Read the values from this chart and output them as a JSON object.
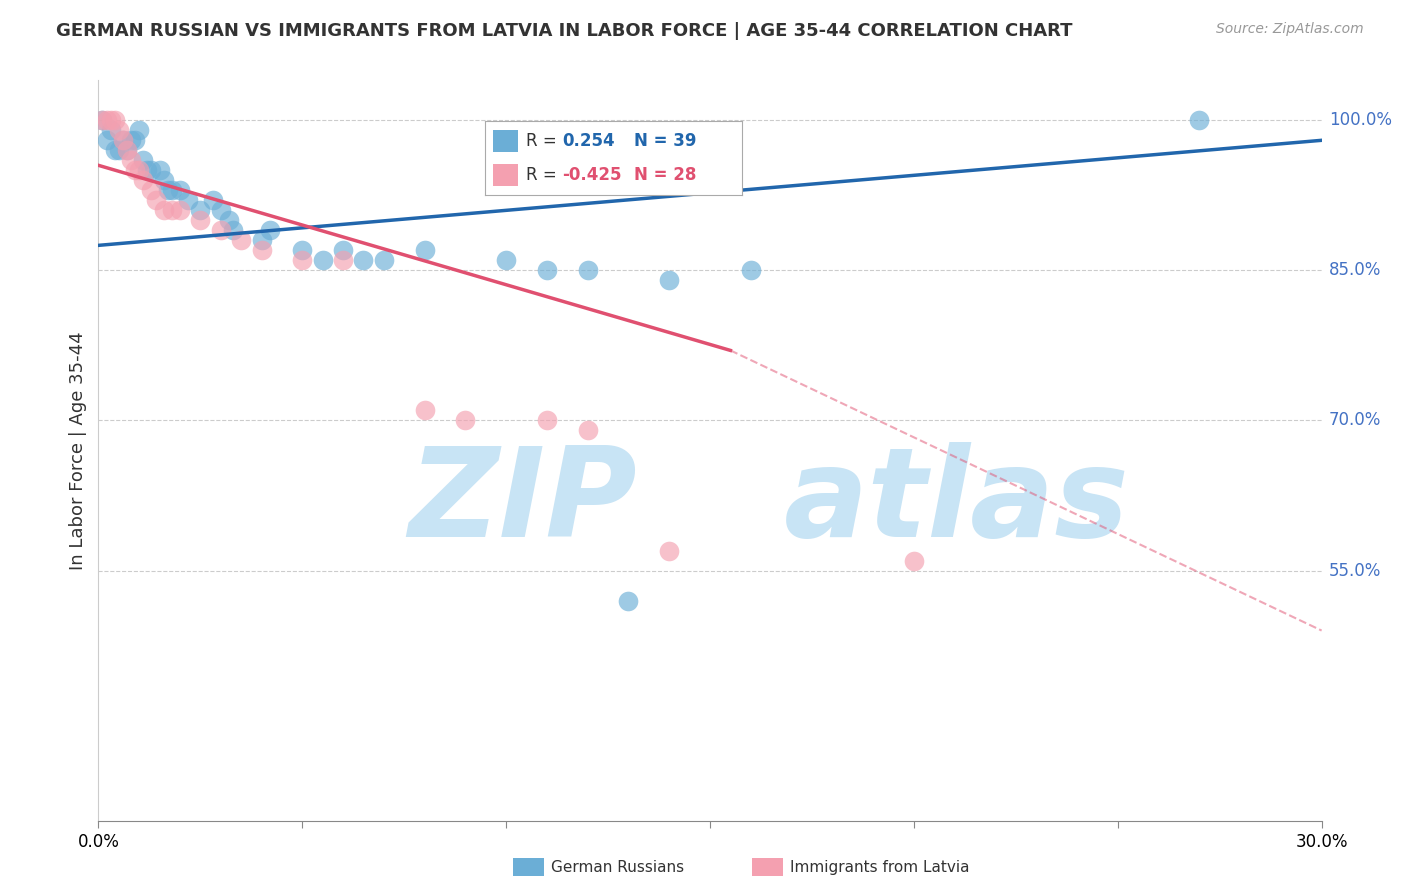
{
  "title": "GERMAN RUSSIAN VS IMMIGRANTS FROM LATVIA IN LABOR FORCE | AGE 35-44 CORRELATION CHART",
  "source": "Source: ZipAtlas.com",
  "ylabel": "In Labor Force | Age 35-44",
  "xlim": [
    0.0,
    0.3
  ],
  "ylim": [
    0.3,
    1.04
  ],
  "xticks": [
    0.0,
    0.05,
    0.1,
    0.15,
    0.2,
    0.25,
    0.3
  ],
  "yticks_right": [
    1.0,
    0.85,
    0.7,
    0.55
  ],
  "ytick_labels_right": [
    "100.0%",
    "85.0%",
    "70.0%",
    "55.0%"
  ],
  "blue_color": "#6baed6",
  "pink_color": "#f4a0b0",
  "blue_line_color": "#2166ac",
  "pink_line_color": "#e05070",
  "blue_scatter": [
    [
      0.001,
      1.0
    ],
    [
      0.002,
      0.98
    ],
    [
      0.003,
      0.99
    ],
    [
      0.004,
      0.97
    ],
    [
      0.005,
      0.97
    ],
    [
      0.006,
      0.98
    ],
    [
      0.007,
      0.97
    ],
    [
      0.008,
      0.98
    ],
    [
      0.009,
      0.98
    ],
    [
      0.01,
      0.99
    ],
    [
      0.011,
      0.96
    ],
    [
      0.012,
      0.95
    ],
    [
      0.013,
      0.95
    ],
    [
      0.015,
      0.95
    ],
    [
      0.016,
      0.94
    ],
    [
      0.017,
      0.93
    ],
    [
      0.018,
      0.93
    ],
    [
      0.02,
      0.93
    ],
    [
      0.022,
      0.92
    ],
    [
      0.025,
      0.91
    ],
    [
      0.028,
      0.92
    ],
    [
      0.03,
      0.91
    ],
    [
      0.032,
      0.9
    ],
    [
      0.033,
      0.89
    ],
    [
      0.04,
      0.88
    ],
    [
      0.042,
      0.89
    ],
    [
      0.05,
      0.87
    ],
    [
      0.055,
      0.86
    ],
    [
      0.06,
      0.87
    ],
    [
      0.065,
      0.86
    ],
    [
      0.07,
      0.86
    ],
    [
      0.08,
      0.87
    ],
    [
      0.1,
      0.86
    ],
    [
      0.11,
      0.85
    ],
    [
      0.12,
      0.85
    ],
    [
      0.14,
      0.84
    ],
    [
      0.16,
      0.85
    ],
    [
      0.13,
      0.52
    ],
    [
      0.27,
      1.0
    ]
  ],
  "pink_scatter": [
    [
      0.001,
      1.0
    ],
    [
      0.002,
      1.0
    ],
    [
      0.003,
      1.0
    ],
    [
      0.004,
      1.0
    ],
    [
      0.005,
      0.99
    ],
    [
      0.006,
      0.98
    ],
    [
      0.007,
      0.97
    ],
    [
      0.008,
      0.96
    ],
    [
      0.009,
      0.95
    ],
    [
      0.01,
      0.95
    ],
    [
      0.011,
      0.94
    ],
    [
      0.013,
      0.93
    ],
    [
      0.014,
      0.92
    ],
    [
      0.016,
      0.91
    ],
    [
      0.018,
      0.91
    ],
    [
      0.02,
      0.91
    ],
    [
      0.025,
      0.9
    ],
    [
      0.03,
      0.89
    ],
    [
      0.035,
      0.88
    ],
    [
      0.04,
      0.87
    ],
    [
      0.05,
      0.86
    ],
    [
      0.06,
      0.86
    ],
    [
      0.08,
      0.71
    ],
    [
      0.09,
      0.7
    ],
    [
      0.11,
      0.7
    ],
    [
      0.12,
      0.69
    ],
    [
      0.14,
      0.57
    ],
    [
      0.2,
      0.56
    ]
  ],
  "blue_trendline": [
    [
      0.0,
      0.875
    ],
    [
      0.3,
      0.98
    ]
  ],
  "pink_trendline_solid": [
    [
      0.0,
      0.955
    ],
    [
      0.155,
      0.77
    ]
  ],
  "pink_trendline_dashed": [
    [
      0.155,
      0.77
    ],
    [
      0.3,
      0.49
    ]
  ],
  "watermark_zip": "ZIP",
  "watermark_atlas": "atlas",
  "watermark_color": "#c8e4f5",
  "grid_color": "#cccccc",
  "axis_color": "#4472c4",
  "background_color": "#ffffff"
}
